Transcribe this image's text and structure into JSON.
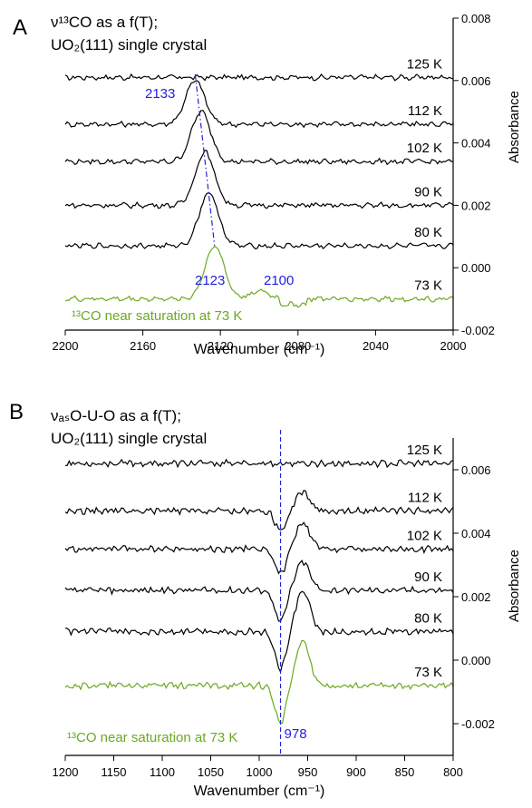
{
  "chart_data": [
    {
      "type": "line",
      "panel_label": "A",
      "title_lines": [
        "ν¹³CO as a f(T);",
        "UO₂(111) single crystal"
      ],
      "xlabel": "Wavenumber (cm⁻¹)",
      "ylabel": "Absorbance",
      "xlim": [
        2200,
        2000
      ],
      "ylim": [
        -0.002,
        0.008
      ],
      "x_ticks": [
        "2200",
        "2160",
        "2120",
        "2080",
        "2040",
        "2000"
      ],
      "x_tick_values": [
        2200,
        2160,
        2120,
        2080,
        2040,
        2000
      ],
      "y_ticks": [
        "-0.002",
        "0.000",
        "0.002",
        "0.004",
        "0.006",
        "0.008"
      ],
      "y_tick_values": [
        -0.002,
        0.0,
        0.002,
        0.004,
        0.006,
        0.008
      ],
      "series": [
        {
          "name": "125 K",
          "color": "#000000",
          "baseline": 0.0061,
          "peaks": []
        },
        {
          "name": "112 K",
          "color": "#000000",
          "baseline": 0.0046,
          "peaks": [
            {
              "center": 2133,
              "height": 0.0014,
              "width": 7
            }
          ]
        },
        {
          "name": "102 K",
          "color": "#000000",
          "baseline": 0.0034,
          "peaks": [
            {
              "center": 2130,
              "height": 0.0016,
              "width": 7
            }
          ]
        },
        {
          "name": "90 K",
          "color": "#000000",
          "baseline": 0.002,
          "peaks": [
            {
              "center": 2128,
              "height": 0.0017,
              "width": 7
            }
          ]
        },
        {
          "name": "80 K",
          "color": "#000000",
          "baseline": 0.0007,
          "peaks": [
            {
              "center": 2126,
              "height": 0.0017,
              "width": 7
            }
          ]
        },
        {
          "name": "73 K",
          "color": "#6aaa1e",
          "baseline": -0.001,
          "peaks": [
            {
              "center": 2123,
              "height": 0.0017,
              "width": 7
            },
            {
              "center": 2100,
              "height": 0.00025,
              "width": 7
            }
          ]
        }
      ],
      "annotations": [
        "2133",
        "2123",
        "2100"
      ],
      "trend_line": {
        "from": [
          2133,
          0.0062
        ],
        "to": [
          2123,
          0.0007
        ],
        "color": "#2222dd"
      },
      "note": "¹³CO near saturation at 73 K"
    },
    {
      "type": "line",
      "panel_label": "B",
      "title_lines": [
        "νₐₛO-U-O as a f(T);",
        "UO₂(111) single crystal"
      ],
      "xlabel": "Wavenumber (cm⁻¹)",
      "ylabel": "Absorbance",
      "xlim": [
        1200,
        800
      ],
      "ylim": [
        -0.003,
        0.007
      ],
      "x_ticks": [
        "1200",
        "1150",
        "1100",
        "1050",
        "1000",
        "950",
        "900",
        "850",
        "800"
      ],
      "x_tick_values": [
        1200,
        1150,
        1100,
        1050,
        1000,
        950,
        900,
        850,
        800
      ],
      "y_ticks": [
        "-0.002",
        "0.000",
        "0.002",
        "0.004",
        "0.006"
      ],
      "y_tick_values": [
        -0.002,
        0.0,
        0.002,
        0.004,
        0.006
      ],
      "series": [
        {
          "name": "125 K",
          "color": "#000000",
          "baseline": 0.0062,
          "features": []
        },
        {
          "name": "112 K",
          "color": "#000000",
          "baseline": 0.0047,
          "features": [
            {
              "center": 978,
              "height": -0.0006,
              "width": 8
            },
            {
              "center": 955,
              "height": 0.0006,
              "width": 10
            }
          ]
        },
        {
          "name": "102 K",
          "color": "#000000",
          "baseline": 0.0035,
          "features": [
            {
              "center": 978,
              "height": -0.0008,
              "width": 8
            },
            {
              "center": 955,
              "height": 0.0008,
              "width": 10
            }
          ]
        },
        {
          "name": "90 K",
          "color": "#000000",
          "baseline": 0.0022,
          "features": [
            {
              "center": 978,
              "height": -0.001,
              "width": 8
            },
            {
              "center": 955,
              "height": 0.0009,
              "width": 10
            }
          ]
        },
        {
          "name": "80 K",
          "color": "#000000",
          "baseline": 0.0009,
          "features": [
            {
              "center": 978,
              "height": -0.0012,
              "width": 8
            },
            {
              "center": 955,
              "height": 0.0013,
              "width": 10
            }
          ]
        },
        {
          "name": "73 K",
          "color": "#6aaa1e",
          "baseline": -0.0008,
          "features": [
            {
              "center": 978,
              "height": -0.0012,
              "width": 8
            },
            {
              "center": 955,
              "height": 0.0014,
              "width": 10
            }
          ]
        }
      ],
      "annotations": [
        "978"
      ],
      "reference_line": {
        "x": 978,
        "color": "#2222dd"
      },
      "note": "¹³CO near saturation at 73 K"
    }
  ]
}
